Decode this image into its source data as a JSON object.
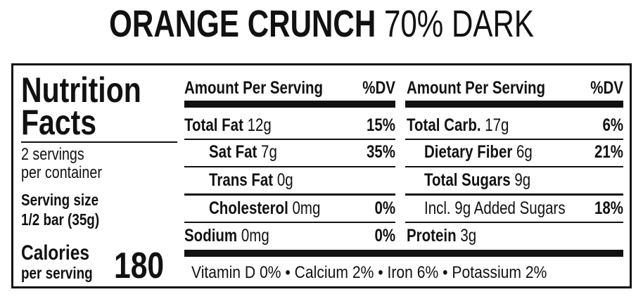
{
  "title": {
    "bold": "ORANGE CRUNCH",
    "light": "70% DARK"
  },
  "facts": {
    "heading_1": "Nutrition",
    "heading_2": "Facts",
    "servings_1": "2 servings",
    "servings_2": "per container",
    "serving_size_label": "Serving size",
    "serving_size": "1/2 bar (35g)",
    "calories_label": "Calories",
    "calories_sub": "per serving",
    "calories": "180"
  },
  "columns": [
    {
      "header": "Amount Per Serving",
      "dv_header": "%DV",
      "rows": [
        {
          "name": "Total Fat",
          "amount": "12g",
          "dv": "15%"
        },
        {
          "name": "Sat Fat",
          "amount": "7g",
          "dv": "35%"
        },
        {
          "name": "Trans Fat",
          "amount": "0g"
        },
        {
          "name": "Cholesterol",
          "amount": "0mg",
          "dv": "0%"
        },
        {
          "name": "Sodium",
          "amount": "0mg",
          "dv": "0%"
        }
      ]
    },
    {
      "header": "Amount Per Serving",
      "dv_header": "%DV",
      "rows": [
        {
          "name": "Total Carb.",
          "amount": "17g",
          "dv": "6%"
        },
        {
          "name": "Dietary Fiber",
          "amount": "6g",
          "dv": "21%"
        },
        {
          "name": "Total Sugars",
          "amount": "9g"
        },
        {
          "name": "Incl. 9g Added Sugars",
          "dv": "18%"
        },
        {
          "name": "Protein",
          "amount": "3g"
        }
      ]
    }
  ],
  "footer": "Vitamin D 0% • Calcium 2% • Iron 6% • Potassium 2%"
}
